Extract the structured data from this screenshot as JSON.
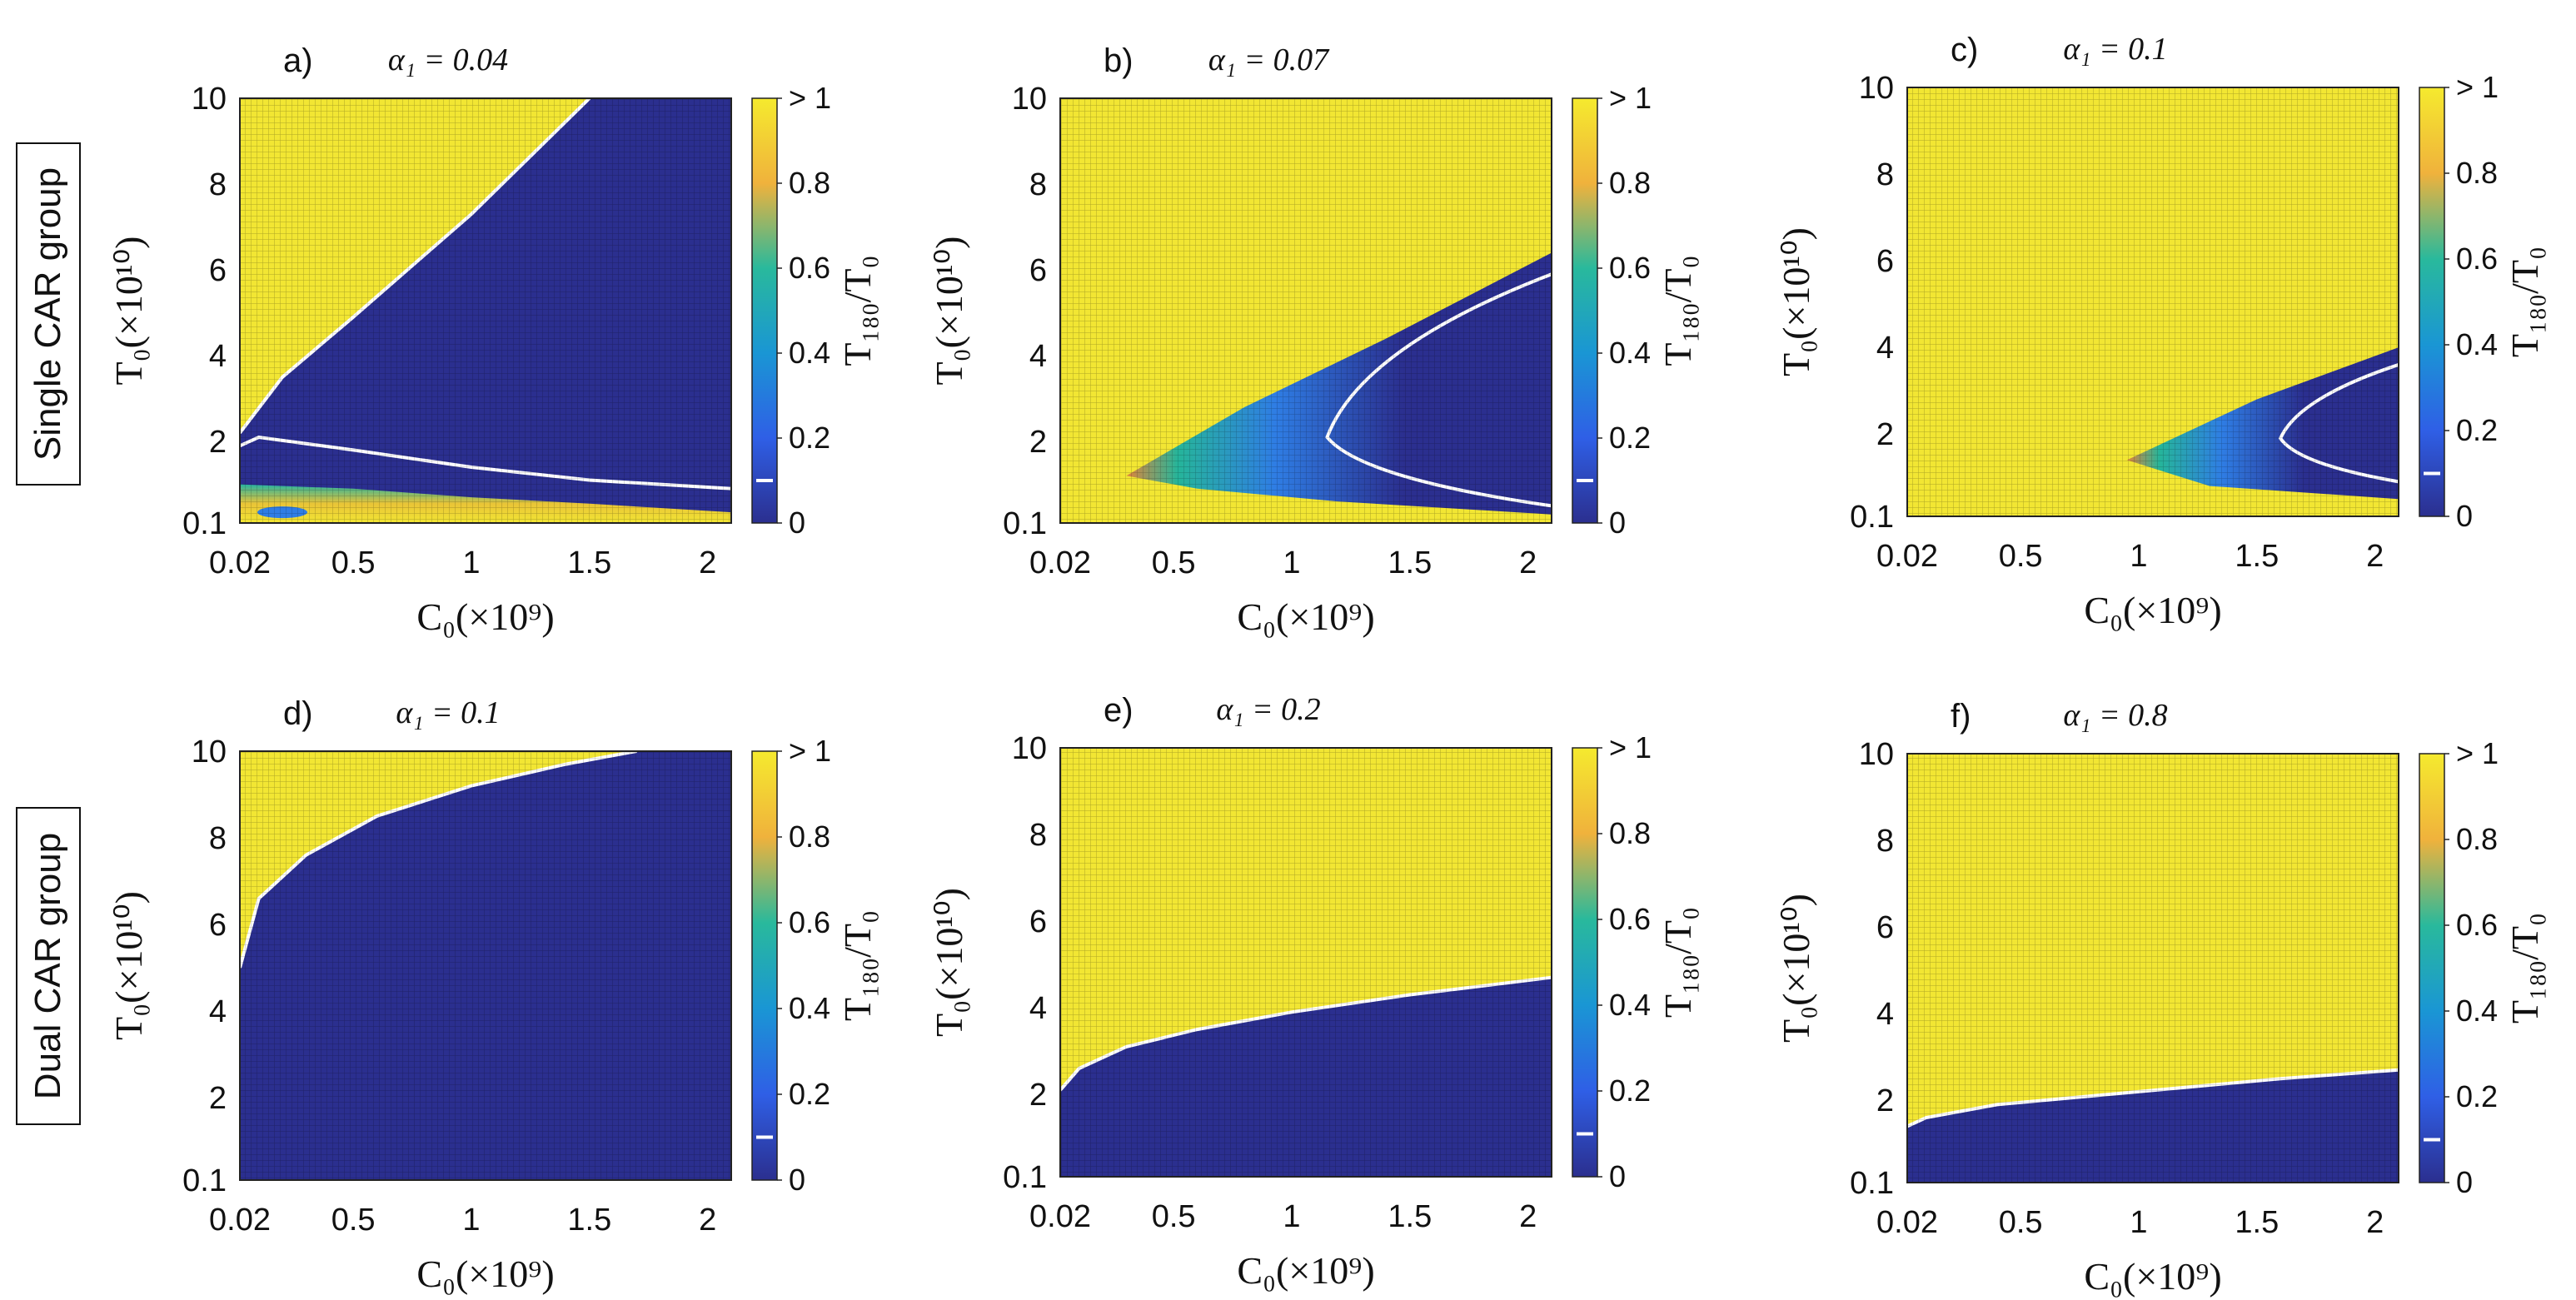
{
  "row_labels": [
    "Single CAR group",
    "Dual CAR group"
  ],
  "colors": {
    "low": "#2b2f8f",
    "high": "#f2e633",
    "contour": "#ffffff"
  },
  "chart_data": [
    {
      "type": "heatmap",
      "panel_label": "a)",
      "title": "α₁ = 0.04",
      "xlabel": "C₀(×10⁹)",
      "ylabel": "T₀(×10¹⁰)",
      "colorbar_label": "T₁₈₀/T₀",
      "x_ticks": [
        "0.02",
        "0.5",
        "1",
        "1.5",
        "2"
      ],
      "y_ticks": [
        "0.1",
        "2",
        "4",
        "6",
        "8",
        "10"
      ],
      "colorbar_ticks": [
        "0",
        "0.2",
        "0.4",
        "0.6",
        "0.8",
        "> 1"
      ],
      "xlim": [
        0.02,
        2.1
      ],
      "ylim": [
        0.1,
        10
      ],
      "yellow_boundary": [
        [
          0.02,
          2.2
        ],
        [
          0.2,
          3.5
        ],
        [
          0.5,
          4.9
        ],
        [
          1.0,
          7.3
        ],
        [
          1.5,
          10
        ]
      ],
      "contour": [
        [
          0.02,
          1.9
        ],
        [
          0.1,
          2.1
        ],
        [
          0.5,
          1.8
        ],
        [
          1.0,
          1.4
        ],
        [
          1.5,
          1.1
        ],
        [
          2.1,
          0.9
        ]
      ],
      "band": [
        [
          0.02,
          1.0
        ],
        [
          0.5,
          0.9
        ],
        [
          1.0,
          0.7
        ],
        [
          1.5,
          0.55
        ],
        [
          2.1,
          0.35
        ]
      ]
    },
    {
      "type": "heatmap",
      "panel_label": "b)",
      "title": "α₁ = 0.07",
      "xlabel": "C₀(×10⁹)",
      "ylabel": "T₀(×10¹⁰)",
      "colorbar_label": "T₁₈₀/T₀",
      "x_ticks": [
        "0.02",
        "0.5",
        "1",
        "1.5",
        "2"
      ],
      "y_ticks": [
        "0.1",
        "2",
        "4",
        "6",
        "8",
        "10"
      ],
      "colorbar_ticks": [
        "0",
        "0.2",
        "0.4",
        "0.6",
        "0.8",
        "> 1"
      ],
      "xlim": [
        0.02,
        2.1
      ],
      "ylim": [
        0.1,
        10
      ],
      "wedge_top": [
        [
          0.3,
          1.2
        ],
        [
          0.8,
          2.8
        ],
        [
          1.4,
          4.4
        ],
        [
          2.1,
          6.4
        ]
      ],
      "wedge_bottom": [
        [
          0.3,
          1.2
        ],
        [
          0.6,
          0.9
        ],
        [
          1.2,
          0.6
        ],
        [
          2.1,
          0.3
        ]
      ],
      "contour_vertex": [
        1.15,
        2.1
      ],
      "contour_top_end": [
        2.1,
        5.9
      ],
      "contour_bottom_end": [
        2.1,
        0.5
      ]
    },
    {
      "type": "heatmap",
      "panel_label": "c)",
      "title": "α₁ = 0.1",
      "xlabel": "C₀(×10⁹)",
      "ylabel": "T₀(×10¹⁰)",
      "colorbar_label": "T₁₈₀/T₀",
      "x_ticks": [
        "0.02",
        "0.5",
        "1",
        "1.5",
        "2"
      ],
      "y_ticks": [
        "0.1",
        "2",
        "4",
        "6",
        "8",
        "10"
      ],
      "colorbar_ticks": [
        "0",
        "0.2",
        "0.4",
        "0.6",
        "0.8",
        "> 1"
      ],
      "xlim": [
        0.02,
        2.1
      ],
      "ylim": [
        0.1,
        10
      ],
      "wedge_top": [
        [
          0.95,
          1.4
        ],
        [
          1.5,
          2.8
        ],
        [
          2.1,
          4.0
        ]
      ],
      "wedge_bottom": [
        [
          0.95,
          1.4
        ],
        [
          1.3,
          0.8
        ],
        [
          2.1,
          0.5
        ]
      ],
      "contour_vertex": [
        1.6,
        1.9
      ],
      "contour_top_end": [
        2.1,
        3.6
      ],
      "contour_bottom_end": [
        2.1,
        0.9
      ]
    },
    {
      "type": "heatmap",
      "panel_label": "d)",
      "title": "α₁ = 0.1",
      "xlabel": "C₀(×10⁹)",
      "ylabel": "T₀(×10¹⁰)",
      "colorbar_label": "T₁₈₀/T₀",
      "x_ticks": [
        "0.02",
        "0.5",
        "1",
        "1.5",
        "2"
      ],
      "y_ticks": [
        "0.1",
        "2",
        "4",
        "6",
        "8",
        "10"
      ],
      "colorbar_ticks": [
        "0",
        "0.2",
        "0.4",
        "0.6",
        "0.8",
        "> 1"
      ],
      "xlim": [
        0.02,
        2.1
      ],
      "ylim": [
        0.1,
        10
      ],
      "boundary": [
        [
          0.02,
          5.0
        ],
        [
          0.05,
          5.6
        ],
        [
          0.1,
          6.6
        ],
        [
          0.3,
          7.6
        ],
        [
          0.6,
          8.5
        ],
        [
          1.0,
          9.2
        ],
        [
          1.4,
          9.7
        ],
        [
          1.7,
          10
        ]
      ]
    },
    {
      "type": "heatmap",
      "panel_label": "e)",
      "title": "α₁ = 0.2",
      "xlabel": "C₀(×10⁹)",
      "ylabel": "T₀(×10¹⁰)",
      "colorbar_label": "T₁₈₀/T₀",
      "x_ticks": [
        "0.02",
        "0.5",
        "1",
        "1.5",
        "2"
      ],
      "y_ticks": [
        "0.1",
        "2",
        "4",
        "6",
        "8",
        "10"
      ],
      "colorbar_ticks": [
        "0",
        "0.2",
        "0.4",
        "0.6",
        "0.8",
        "> 1"
      ],
      "xlim": [
        0.02,
        2.1
      ],
      "ylim": [
        0.1,
        10
      ],
      "boundary": [
        [
          0.02,
          2.1
        ],
        [
          0.1,
          2.6
        ],
        [
          0.3,
          3.1
        ],
        [
          0.6,
          3.5
        ],
        [
          1.0,
          3.9
        ],
        [
          1.5,
          4.3
        ],
        [
          2.1,
          4.7
        ]
      ]
    },
    {
      "type": "heatmap",
      "panel_label": "f)",
      "title": "α₁ = 0.8",
      "xlabel": "C₀(×10⁹)",
      "ylabel": "T₀(×10¹⁰)",
      "colorbar_label": "T₁₈₀/T₀",
      "x_ticks": [
        "0.02",
        "0.5",
        "1",
        "1.5",
        "2"
      ],
      "y_ticks": [
        "0.1",
        "2",
        "4",
        "6",
        "8",
        "10"
      ],
      "colorbar_ticks": [
        "0",
        "0.2",
        "0.4",
        "0.6",
        "0.8",
        "> 1"
      ],
      "xlim": [
        0.02,
        2.1
      ],
      "ylim": [
        0.1,
        10
      ],
      "boundary": [
        [
          0.02,
          1.4
        ],
        [
          0.1,
          1.6
        ],
        [
          0.4,
          1.9
        ],
        [
          0.8,
          2.1
        ],
        [
          1.2,
          2.3
        ],
        [
          1.6,
          2.5
        ],
        [
          2.1,
          2.7
        ]
      ]
    }
  ]
}
